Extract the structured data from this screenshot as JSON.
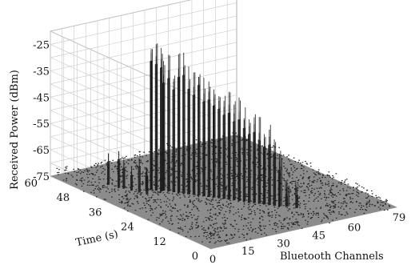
{
  "chart_data": {
    "type": "surface",
    "title": "",
    "xlabel": "Bluetooth Channels",
    "ylabel": "Time (s)",
    "zlabel": "Received Power (dBm)",
    "x_ticks": [
      "0",
      "15",
      "30",
      "45",
      "60",
      "79"
    ],
    "y_ticks": [
      "60",
      "48",
      "36",
      "24",
      "12",
      "0"
    ],
    "z_ticks": [
      "-25",
      "-35",
      "-45",
      "-55",
      "-65",
      "-75"
    ],
    "xlim": [
      0,
      79
    ],
    "ylim": [
      0,
      60
    ],
    "zlim": [
      -75,
      -20
    ],
    "grid": true,
    "series": [
      {
        "values": [
          {
            "channel": 11,
            "time": 48,
            "power": -63
          },
          {
            "channel": 12,
            "time": 45,
            "power": -61
          },
          {
            "channel": 13,
            "time": 44,
            "power": -64
          },
          {
            "channel": 14,
            "time": 42,
            "power": -66
          },
          {
            "channel": 15,
            "time": 40,
            "power": -62
          },
          {
            "channel": 16,
            "time": 38,
            "power": -65
          },
          {
            "channel": 18,
            "time": 40,
            "power": -66
          },
          {
            "channel": 20,
            "time": 40,
            "power": -23
          },
          {
            "channel": 21,
            "time": 39,
            "power": -24
          },
          {
            "channel": 22,
            "time": 38,
            "power": -25
          },
          {
            "channel": 23,
            "time": 38,
            "power": -31
          },
          {
            "channel": 24,
            "time": 37,
            "power": -29
          },
          {
            "channel": 25,
            "time": 36,
            "power": -33
          },
          {
            "channel": 26,
            "time": 35,
            "power": -28
          },
          {
            "channel": 27,
            "time": 34,
            "power": -27
          },
          {
            "channel": 28,
            "time": 33,
            "power": -32
          },
          {
            "channel": 29,
            "time": 32,
            "power": -34
          },
          {
            "channel": 30,
            "time": 31,
            "power": -30
          },
          {
            "channel": 31,
            "time": 30,
            "power": -36
          },
          {
            "channel": 32,
            "time": 29,
            "power": -35
          },
          {
            "channel": 33,
            "time": 28,
            "power": -37
          },
          {
            "channel": 34,
            "time": 27,
            "power": -38
          },
          {
            "channel": 35,
            "time": 26,
            "power": -40
          },
          {
            "channel": 36,
            "time": 25,
            "power": -39
          },
          {
            "channel": 37,
            "time": 24,
            "power": -42
          },
          {
            "channel": 38,
            "time": 23,
            "power": -41
          },
          {
            "channel": 39,
            "time": 22,
            "power": -44
          },
          {
            "channel": 40,
            "time": 21,
            "power": -46
          },
          {
            "channel": 41,
            "time": 20,
            "power": -45
          },
          {
            "channel": 42,
            "time": 19,
            "power": -48
          },
          {
            "channel": 43,
            "time": 18,
            "power": -50
          },
          {
            "channel": 44,
            "time": 17,
            "power": -49
          },
          {
            "channel": 45,
            "time": 16,
            "power": -52
          },
          {
            "channel": 46,
            "time": 15,
            "power": -58
          },
          {
            "channel": 48,
            "time": 14,
            "power": -68
          },
          {
            "channel": 50,
            "time": 12,
            "power": -67
          }
        ]
      }
    ]
  }
}
